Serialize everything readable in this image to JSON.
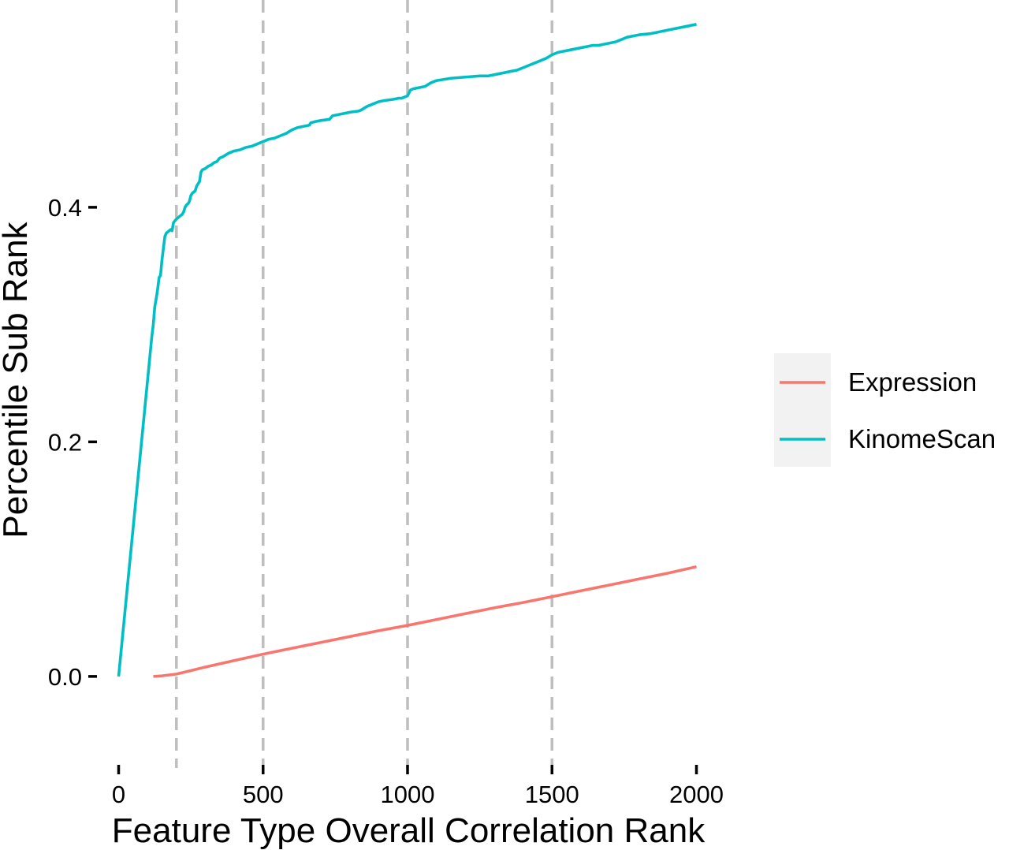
{
  "chart_data": {
    "type": "line",
    "title": "",
    "xlabel": "Feature Type Overall Correlation Rank",
    "ylabel": "Percentile Sub Rank",
    "xlim": [
      -75,
      2075
    ],
    "ylim": [
      -0.07,
      0.57
    ],
    "x_ticks": [
      0,
      500,
      1000,
      1500,
      2000
    ],
    "x_tick_labels": [
      "0",
      "500",
      "1000",
      "1500",
      "2000"
    ],
    "y_ticks": [
      0.0,
      0.2,
      0.4
    ],
    "y_tick_labels": [
      "0.0",
      "0.2",
      "0.4"
    ],
    "grid": false,
    "legend_position": "right",
    "vertical_reference_lines": [
      200,
      500,
      1000,
      1500
    ],
    "vline_color": "#BEBEBE",
    "legend_background": "#F2F2F2",
    "series": [
      {
        "name": "Expression",
        "color": "#F8766D",
        "x": [
          120,
          150,
          200,
          250,
          300,
          400,
          500,
          600,
          700,
          800,
          900,
          1000,
          1100,
          1200,
          1300,
          1400,
          1500,
          1600,
          1700,
          1800,
          1900,
          2000
        ],
        "y": [
          0.0,
          0.0005,
          0.002,
          0.005,
          0.008,
          0.0135,
          0.019,
          0.024,
          0.029,
          0.034,
          0.039,
          0.0435,
          0.0485,
          0.0535,
          0.0585,
          0.063,
          0.068,
          0.073,
          0.078,
          0.083,
          0.088,
          0.0935
        ]
      },
      {
        "name": "KinomeScan",
        "color": "#00BFC4",
        "x": [
          0,
          115,
          120,
          125,
          130,
          135,
          140,
          145,
          150,
          155,
          160,
          165,
          170,
          175,
          180,
          185,
          190,
          200,
          205,
          210,
          215,
          220,
          225,
          230,
          235,
          240,
          245,
          250,
          255,
          260,
          265,
          270,
          275,
          280,
          285,
          290,
          300,
          310,
          320,
          330,
          340,
          350,
          360,
          380,
          400,
          420,
          430,
          440,
          460,
          480,
          500,
          520,
          540,
          560,
          580,
          600,
          620,
          640,
          660,
          665,
          680,
          700,
          730,
          740,
          760,
          780,
          800,
          830,
          840,
          860,
          880,
          900,
          920,
          950,
          970,
          980,
          1000,
          1010,
          1020,
          1040,
          1060,
          1080,
          1100,
          1150,
          1200,
          1250,
          1280,
          1300,
          1320,
          1340,
          1360,
          1380,
          1400,
          1420,
          1440,
          1460,
          1480,
          1500,
          1520,
          1540,
          1560,
          1580,
          1600,
          1620,
          1640,
          1660,
          1680,
          1700,
          1720,
          1740,
          1760,
          1800,
          1840,
          1860,
          1880,
          1900,
          1920,
          1940,
          1960,
          1980,
          2000
        ],
        "y": [
          0.0,
          0.29,
          0.3,
          0.315,
          0.322,
          0.33,
          0.34,
          0.342,
          0.355,
          0.365,
          0.375,
          0.378,
          0.379,
          0.38,
          0.381,
          0.38,
          0.387,
          0.39,
          0.391,
          0.392,
          0.393,
          0.394,
          0.396,
          0.4,
          0.402,
          0.403,
          0.405,
          0.41,
          0.412,
          0.413,
          0.414,
          0.418,
          0.42,
          0.422,
          0.43,
          0.432,
          0.433,
          0.435,
          0.436,
          0.438,
          0.439,
          0.442,
          0.443,
          0.446,
          0.448,
          0.449,
          0.45,
          0.451,
          0.452,
          0.454,
          0.456,
          0.458,
          0.459,
          0.461,
          0.463,
          0.466,
          0.468,
          0.469,
          0.47,
          0.472,
          0.473,
          0.474,
          0.475,
          0.478,
          0.479,
          0.48,
          0.481,
          0.482,
          0.483,
          0.486,
          0.488,
          0.49,
          0.491,
          0.492,
          0.493,
          0.493,
          0.495,
          0.5,
          0.501,
          0.502,
          0.503,
          0.506,
          0.508,
          0.51,
          0.511,
          0.512,
          0.512,
          0.513,
          0.514,
          0.515,
          0.516,
          0.517,
          0.519,
          0.521,
          0.523,
          0.525,
          0.527,
          0.53,
          0.532,
          0.533,
          0.534,
          0.535,
          0.536,
          0.537,
          0.538,
          0.538,
          0.539,
          0.54,
          0.541,
          0.543,
          0.545,
          0.547,
          0.548,
          0.549,
          0.55,
          0.551,
          0.552,
          0.553,
          0.554,
          0.555,
          0.556
        ]
      }
    ]
  }
}
